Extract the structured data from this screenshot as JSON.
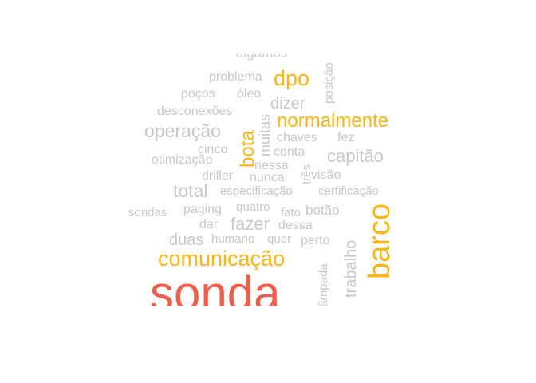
{
  "colors": {
    "grey": "#c8c8c8",
    "orange": "#fdb515",
    "red": "#f25c4a"
  },
  "words": [
    {
      "text": "algamos",
      "color": "grey"
    },
    {
      "text": "problema",
      "color": "grey"
    },
    {
      "text": "dpo",
      "color": "orange"
    },
    {
      "text": "posição",
      "color": "grey"
    },
    {
      "text": "poços",
      "color": "grey"
    },
    {
      "text": "óleo",
      "color": "grey"
    },
    {
      "text": "dizer",
      "color": "grey"
    },
    {
      "text": "desconexões",
      "color": "grey"
    },
    {
      "text": "muitas",
      "color": "grey"
    },
    {
      "text": "normalmente",
      "color": "orange"
    },
    {
      "text": "operação",
      "color": "grey"
    },
    {
      "text": "bota",
      "color": "orange"
    },
    {
      "text": "chaves",
      "color": "grey"
    },
    {
      "text": "fez",
      "color": "grey"
    },
    {
      "text": "cinco",
      "color": "grey"
    },
    {
      "text": "conta",
      "color": "grey"
    },
    {
      "text": "capitão",
      "color": "grey"
    },
    {
      "text": "otimização",
      "color": "grey"
    },
    {
      "text": "nessa",
      "color": "grey"
    },
    {
      "text": "três",
      "color": "grey"
    },
    {
      "text": "driller",
      "color": "grey"
    },
    {
      "text": "nunca",
      "color": "grey"
    },
    {
      "text": "visão",
      "color": "grey"
    },
    {
      "text": "total",
      "color": "grey"
    },
    {
      "text": "especificação",
      "color": "grey"
    },
    {
      "text": "certificação",
      "color": "grey"
    },
    {
      "text": "sondas",
      "color": "grey"
    },
    {
      "text": "paging",
      "color": "grey"
    },
    {
      "text": "quatro",
      "color": "grey"
    },
    {
      "text": "fato",
      "color": "grey"
    },
    {
      "text": "botão",
      "color": "grey"
    },
    {
      "text": "barco",
      "color": "orange"
    },
    {
      "text": "dar",
      "color": "grey"
    },
    {
      "text": "fazer",
      "color": "grey"
    },
    {
      "text": "dessa",
      "color": "grey"
    },
    {
      "text": "duas",
      "color": "grey"
    },
    {
      "text": "humano",
      "color": "grey"
    },
    {
      "text": "quer",
      "color": "grey"
    },
    {
      "text": "perto",
      "color": "grey"
    },
    {
      "text": "trabalho",
      "color": "grey"
    },
    {
      "text": "comunicação",
      "color": "orange"
    },
    {
      "text": "lâmpada",
      "color": "grey"
    },
    {
      "text": "sonda",
      "color": "red"
    }
  ]
}
